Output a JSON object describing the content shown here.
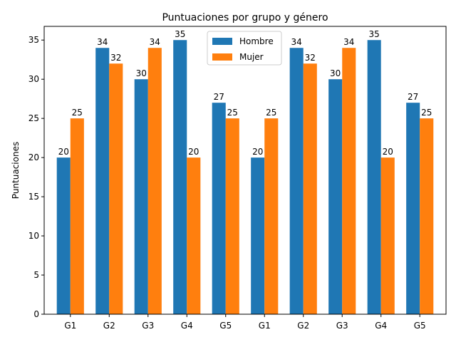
{
  "chart_data": {
    "type": "bar",
    "title": "Puntuaciones por grupo y género",
    "xlabel": "",
    "ylabel": "Puntuaciones",
    "categories": [
      "G1",
      "G2",
      "G3",
      "G4",
      "G5",
      "G1",
      "G2",
      "G3",
      "G4",
      "G5"
    ],
    "series": [
      {
        "name": "Hombre",
        "color": "#1f77b4",
        "values": [
          20,
          34,
          30,
          35,
          27,
          20,
          34,
          30,
          35,
          27
        ]
      },
      {
        "name": "Mujer",
        "color": "#ff7f0e",
        "values": [
          25,
          32,
          34,
          20,
          25,
          25,
          32,
          34,
          20,
          25
        ]
      }
    ],
    "ylim": [
      0,
      36.75
    ],
    "yticks": [
      0,
      5,
      10,
      15,
      20,
      25,
      30,
      35
    ],
    "grid": false,
    "legend_position": "top-center",
    "data_labels": true
  }
}
